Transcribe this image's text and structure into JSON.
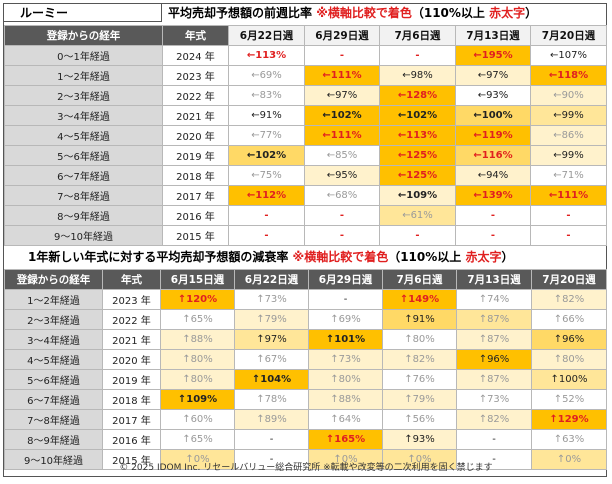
{
  "model_label": "ルーミー",
  "table1": {
    "title": "平均売却予想額の前週比率 ",
    "title_note": "※横軸比較で着色",
    "title_paren": "（110%以上 ",
    "title_red": "赤太字",
    "title_close": "）",
    "headers": [
      "登録からの経年",
      "年式",
      "6月22日週",
      "6月29日週",
      "7月6日週",
      "7月13日週",
      "7月20日週"
    ],
    "rows": [
      {
        "label": "0～1年経過",
        "year": "2024 年",
        "cells": [
          {
            "v": "←113%",
            "c": 0,
            "s": "r"
          },
          {
            "v": "-",
            "c": 0,
            "s": "r"
          },
          {
            "v": "-",
            "c": 0,
            "s": "r"
          },
          {
            "v": "←195%",
            "c": 4,
            "s": "r"
          },
          {
            "v": "←107%",
            "c": 0,
            "s": ""
          }
        ]
      },
      {
        "label": "1～2年経過",
        "year": "2023 年",
        "cells": [
          {
            "v": "←69%",
            "c": 0,
            "s": "g"
          },
          {
            "v": "←111%",
            "c": 4,
            "s": "r"
          },
          {
            "v": "←98%",
            "c": 1,
            "s": ""
          },
          {
            "v": "←97%",
            "c": 1,
            "s": ""
          },
          {
            "v": "←118%",
            "c": 4,
            "s": "r"
          }
        ]
      },
      {
        "label": "2～3年経過",
        "year": "2022 年",
        "cells": [
          {
            "v": "←83%",
            "c": 0,
            "s": "g"
          },
          {
            "v": "←97%",
            "c": 1,
            "s": ""
          },
          {
            "v": "←128%",
            "c": 4,
            "s": "r"
          },
          {
            "v": "←93%",
            "c": 0,
            "s": ""
          },
          {
            "v": "←90%",
            "c": 1,
            "s": "g"
          }
        ]
      },
      {
        "label": "3～4年経過",
        "year": "2021 年",
        "cells": [
          {
            "v": "←91%",
            "c": 0,
            "s": ""
          },
          {
            "v": "←102%",
            "c": 4,
            "s": "b"
          },
          {
            "v": "←102%",
            "c": 4,
            "s": "b"
          },
          {
            "v": "←100%",
            "c": 3,
            "s": "b"
          },
          {
            "v": "←99%",
            "c": 2,
            "s": ""
          }
        ]
      },
      {
        "label": "4～5年経過",
        "year": "2020 年",
        "cells": [
          {
            "v": "←77%",
            "c": 0,
            "s": "g"
          },
          {
            "v": "←111%",
            "c": 4,
            "s": "r"
          },
          {
            "v": "←113%",
            "c": 4,
            "s": "r"
          },
          {
            "v": "←119%",
            "c": 4,
            "s": "r"
          },
          {
            "v": "←86%",
            "c": 1,
            "s": "g"
          }
        ]
      },
      {
        "label": "5～6年経過",
        "year": "2019 年",
        "cells": [
          {
            "v": "←102%",
            "c": 3,
            "s": "b"
          },
          {
            "v": "←85%",
            "c": 0,
            "s": "g"
          },
          {
            "v": "←125%",
            "c": 4,
            "s": "r"
          },
          {
            "v": "←116%",
            "c": 3,
            "s": "r"
          },
          {
            "v": "←99%",
            "c": 1,
            "s": ""
          }
        ]
      },
      {
        "label": "6～7年経過",
        "year": "2018 年",
        "cells": [
          {
            "v": "←75%",
            "c": 0,
            "s": "g"
          },
          {
            "v": "←95%",
            "c": 1,
            "s": ""
          },
          {
            "v": "←125%",
            "c": 4,
            "s": "r"
          },
          {
            "v": "←94%",
            "c": 1,
            "s": ""
          },
          {
            "v": "←71%",
            "c": 0,
            "s": "g"
          }
        ]
      },
      {
        "label": "7～8年経過",
        "year": "2017 年",
        "cells": [
          {
            "v": "←112%",
            "c": 4,
            "s": "r"
          },
          {
            "v": "←68%",
            "c": 0,
            "s": "g"
          },
          {
            "v": "←109%",
            "c": 1,
            "s": "b"
          },
          {
            "v": "←139%",
            "c": 4,
            "s": "r"
          },
          {
            "v": "←111%",
            "c": 4,
            "s": "r"
          }
        ]
      },
      {
        "label": "8～9年経過",
        "year": "2016 年",
        "cells": [
          {
            "v": "-",
            "c": 0,
            "s": "r"
          },
          {
            "v": "-",
            "c": 0,
            "s": "r"
          },
          {
            "v": "←61%",
            "c": 2,
            "s": "g"
          },
          {
            "v": "-",
            "c": 0,
            "s": "r"
          },
          {
            "v": "-",
            "c": 0,
            "s": "r"
          }
        ]
      },
      {
        "label": "9～10年経過",
        "year": "2015 年",
        "cells": [
          {
            "v": "-",
            "c": 0,
            "s": "r"
          },
          {
            "v": "-",
            "c": 0,
            "s": "r"
          },
          {
            "v": "-",
            "c": 0,
            "s": "r"
          },
          {
            "v": "-",
            "c": 0,
            "s": "r"
          },
          {
            "v": "-",
            "c": 0,
            "s": "r"
          }
        ]
      }
    ]
  },
  "table2": {
    "title": "1年新しい年式に対する平均売却予想額の減衰率 ",
    "title_note": "※横軸比較で着色",
    "title_paren": "（110%以上 ",
    "title_red": "赤太字",
    "title_close": "）",
    "headers": [
      "登録からの経年",
      "年式",
      "6月15日週",
      "6月22日週",
      "6月29日週",
      "7月6日週",
      "7月13日週",
      "7月20日週"
    ],
    "rows": [
      {
        "label": "1～2年経過",
        "year": "2023 年",
        "cells": [
          {
            "v": "↑120%",
            "c": 4,
            "s": "r"
          },
          {
            "v": "↑73%",
            "c": 0,
            "s": "g"
          },
          {
            "v": "-",
            "c": 0,
            "s": ""
          },
          {
            "v": "↑149%",
            "c": 4,
            "s": "r"
          },
          {
            "v": "↑74%",
            "c": 0,
            "s": "g"
          },
          {
            "v": "↑82%",
            "c": 1,
            "s": "g"
          }
        ]
      },
      {
        "label": "2～3年経過",
        "year": "2022 年",
        "cells": [
          {
            "v": "↑65%",
            "c": 0,
            "s": "g"
          },
          {
            "v": "↑79%",
            "c": 1,
            "s": "g"
          },
          {
            "v": "↑69%",
            "c": 0,
            "s": "g"
          },
          {
            "v": "↑91%",
            "c": 3,
            "s": ""
          },
          {
            "v": "↑87%",
            "c": 2,
            "s": "g"
          },
          {
            "v": "↑66%",
            "c": 0,
            "s": "g"
          }
        ]
      },
      {
        "label": "3～4年経過",
        "year": "2021 年",
        "cells": [
          {
            "v": "↑88%",
            "c": 1,
            "s": "g"
          },
          {
            "v": "↑97%",
            "c": 2,
            "s": ""
          },
          {
            "v": "↑101%",
            "c": 4,
            "s": "b"
          },
          {
            "v": "↑80%",
            "c": 0,
            "s": "g"
          },
          {
            "v": "↑87%",
            "c": 1,
            "s": "g"
          },
          {
            "v": "↑96%",
            "c": 3,
            "s": ""
          }
        ]
      },
      {
        "label": "4～5年経過",
        "year": "2020 年",
        "cells": [
          {
            "v": "↑80%",
            "c": 1,
            "s": "g"
          },
          {
            "v": "↑67%",
            "c": 0,
            "s": "g"
          },
          {
            "v": "↑73%",
            "c": 1,
            "s": "g"
          },
          {
            "v": "↑82%",
            "c": 1,
            "s": "g"
          },
          {
            "v": "↑96%",
            "c": 4,
            "s": ""
          },
          {
            "v": "↑80%",
            "c": 1,
            "s": "g"
          }
        ]
      },
      {
        "label": "5～6年経過",
        "year": "2019 年",
        "cells": [
          {
            "v": "↑80%",
            "c": 1,
            "s": "g"
          },
          {
            "v": "↑104%",
            "c": 4,
            "s": "b"
          },
          {
            "v": "↑80%",
            "c": 1,
            "s": "g"
          },
          {
            "v": "↑76%",
            "c": 0,
            "s": "g"
          },
          {
            "v": "↑87%",
            "c": 1,
            "s": "g"
          },
          {
            "v": "↑100%",
            "c": 2,
            "s": ""
          }
        ]
      },
      {
        "label": "6～7年経過",
        "year": "2018 年",
        "cells": [
          {
            "v": "↑109%",
            "c": 4,
            "s": "b"
          },
          {
            "v": "↑78%",
            "c": 0,
            "s": "g"
          },
          {
            "v": "↑88%",
            "c": 1,
            "s": "g"
          },
          {
            "v": "↑79%",
            "c": 1,
            "s": "g"
          },
          {
            "v": "↑73%",
            "c": 0,
            "s": "g"
          },
          {
            "v": "↑52%",
            "c": 0,
            "s": "g"
          }
        ]
      },
      {
        "label": "7～8年経過",
        "year": "2017 年",
        "cells": [
          {
            "v": "↑60%",
            "c": 0,
            "s": "g"
          },
          {
            "v": "↑89%",
            "c": 1,
            "s": "g"
          },
          {
            "v": "↑64%",
            "c": 0,
            "s": "g"
          },
          {
            "v": "↑56%",
            "c": 0,
            "s": "g"
          },
          {
            "v": "↑82%",
            "c": 1,
            "s": "g"
          },
          {
            "v": "↑129%",
            "c": 4,
            "s": "r"
          }
        ]
      },
      {
        "label": "8～9年経過",
        "year": "2016 年",
        "cells": [
          {
            "v": "↑65%",
            "c": 0,
            "s": "g"
          },
          {
            "v": "-",
            "c": 0,
            "s": ""
          },
          {
            "v": "↑165%",
            "c": 4,
            "s": "r"
          },
          {
            "v": "↑93%",
            "c": 1,
            "s": ""
          },
          {
            "v": "-",
            "c": 0,
            "s": ""
          },
          {
            "v": "↑63%",
            "c": 0,
            "s": "g"
          }
        ]
      },
      {
        "label": "9～10年経過",
        "year": "2015 年",
        "cells": [
          {
            "v": "↑0%",
            "c": 2,
            "s": "g"
          },
          {
            "v": "-",
            "c": 0,
            "s": ""
          },
          {
            "v": "↑0%",
            "c": 2,
            "s": "g"
          },
          {
            "v": "↑0%",
            "c": 2,
            "s": "g"
          },
          {
            "v": "-",
            "c": 0,
            "s": ""
          },
          {
            "v": "↑0%",
            "c": 2,
            "s": "g"
          }
        ]
      }
    ]
  },
  "footer": "© 2025 IDOM Inc. リセールバリュー総合研究所 ※転載や改変等の二次利用を固く禁じます",
  "colors": {
    "level0": "#ffffff",
    "level1": "#fff2cc",
    "level2": "#ffe699",
    "level3": "#ffd966",
    "level4": "#ffc000",
    "header_dark": "#595959",
    "label_gray": "#d9d9d9",
    "red_text": "#e02020"
  }
}
